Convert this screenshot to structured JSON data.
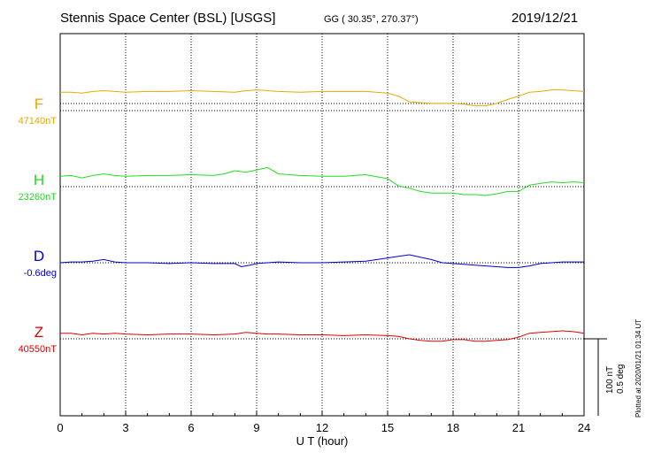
{
  "header": {
    "station": "Stennis Space Center (BSL)  [USGS]",
    "coords": "GG ( 30.35°, 270.37°)",
    "date": "2019/12/21"
  },
  "scale": {
    "nt": "100 nT",
    "deg": "0.5 deg"
  },
  "plotted_note": "Plotted at 2020/01/21 01:34 UT",
  "chart_data": {
    "type": "line",
    "xlabel": "U T (hour)",
    "xlim": [
      0,
      24
    ],
    "xticks": [
      0,
      3,
      6,
      9,
      12,
      15,
      18,
      21,
      24
    ],
    "grid": true,
    "series": [
      {
        "name": "F",
        "baseline_label": "47140nT",
        "color": "#e8a800",
        "x": [
          0,
          0.5,
          1,
          1.5,
          2,
          2.5,
          3,
          4,
          5,
          6,
          7,
          8,
          8.5,
          9,
          9.5,
          10,
          11,
          12,
          13,
          14,
          15,
          15.5,
          16,
          16.5,
          17,
          17.5,
          18,
          18.5,
          19,
          19.5,
          20,
          20.5,
          21,
          21.5,
          22,
          22.5,
          23,
          23.5,
          24
        ],
        "values": [
          23,
          23,
          22,
          24,
          25,
          24,
          23,
          24,
          24,
          25,
          24,
          23,
          25,
          26,
          25,
          24,
          23,
          24,
          24,
          24,
          22,
          18,
          11,
          10,
          9,
          9,
          9,
          8,
          6,
          6,
          9,
          14,
          18,
          23,
          24,
          26,
          26,
          25,
          24
        ]
      },
      {
        "name": "H",
        "baseline_label": "23260nT",
        "color": "#22dd22",
        "x": [
          0,
          0.5,
          1,
          1.5,
          2,
          2.5,
          3,
          4,
          5,
          6,
          7,
          7.5,
          8,
          8.5,
          9,
          9.5,
          10,
          11,
          12,
          13,
          14,
          15,
          15.5,
          16,
          16.5,
          17,
          17.5,
          18,
          18.5,
          19,
          19.5,
          20,
          20.5,
          21,
          21.5,
          22,
          22.5,
          23,
          23.5,
          24
        ],
        "values": [
          13,
          14,
          11,
          14,
          16,
          14,
          13,
          14,
          14,
          15,
          14,
          16,
          20,
          18,
          21,
          24,
          16,
          14,
          13,
          13,
          15,
          10,
          1,
          -2,
          -6,
          -8,
          -8,
          -8,
          -10,
          -10,
          -11,
          -9,
          -6,
          -6,
          2,
          4,
          6,
          5,
          6,
          5
        ]
      },
      {
        "name": "D",
        "baseline_label": "-0.6deg",
        "color": "#0000cc",
        "x": [
          0,
          0.5,
          1,
          1.5,
          2,
          2.5,
          3,
          4,
          5,
          6,
          7,
          7.5,
          8,
          8.3,
          8.7,
          9,
          9.5,
          10,
          11,
          12,
          13,
          14,
          15,
          15.5,
          16,
          16.5,
          17,
          17.5,
          18,
          18.5,
          19,
          19.5,
          20,
          20.5,
          21,
          21.5,
          22,
          22.5,
          23,
          23.5,
          24
        ],
        "values": [
          0,
          1,
          1,
          2,
          4,
          1,
          0,
          0,
          -1,
          0,
          -1,
          -1,
          -1,
          -5,
          -3,
          -1,
          0,
          1,
          0,
          0,
          1,
          2,
          6,
          8,
          10,
          7,
          4,
          0,
          -1,
          -2,
          -3,
          -4,
          -5,
          -6,
          -6,
          -4,
          -1,
          0,
          1,
          1,
          1
        ]
      },
      {
        "name": "Z",
        "baseline_label": "40550nT",
        "color": "#dd0000",
        "x": [
          0,
          0.5,
          1,
          1.5,
          2,
          2.5,
          3,
          4,
          5,
          6,
          7,
          8,
          8.5,
          9,
          9.5,
          10,
          11,
          12,
          13,
          14,
          15,
          15.5,
          16,
          16.5,
          17,
          17.5,
          18,
          18.5,
          19,
          19.5,
          20,
          20.5,
          21,
          21.5,
          22,
          22.5,
          23,
          23.5,
          24
        ],
        "values": [
          7,
          7,
          5,
          7,
          6,
          7,
          6,
          5,
          6,
          6,
          5,
          6,
          8,
          7,
          6,
          6,
          5,
          5,
          4,
          5,
          4,
          3,
          0,
          -2,
          -3,
          -3,
          -1,
          -1,
          -3,
          -3,
          -2,
          -1,
          2,
          7,
          8,
          9,
          10,
          9,
          7
        ]
      }
    ]
  }
}
